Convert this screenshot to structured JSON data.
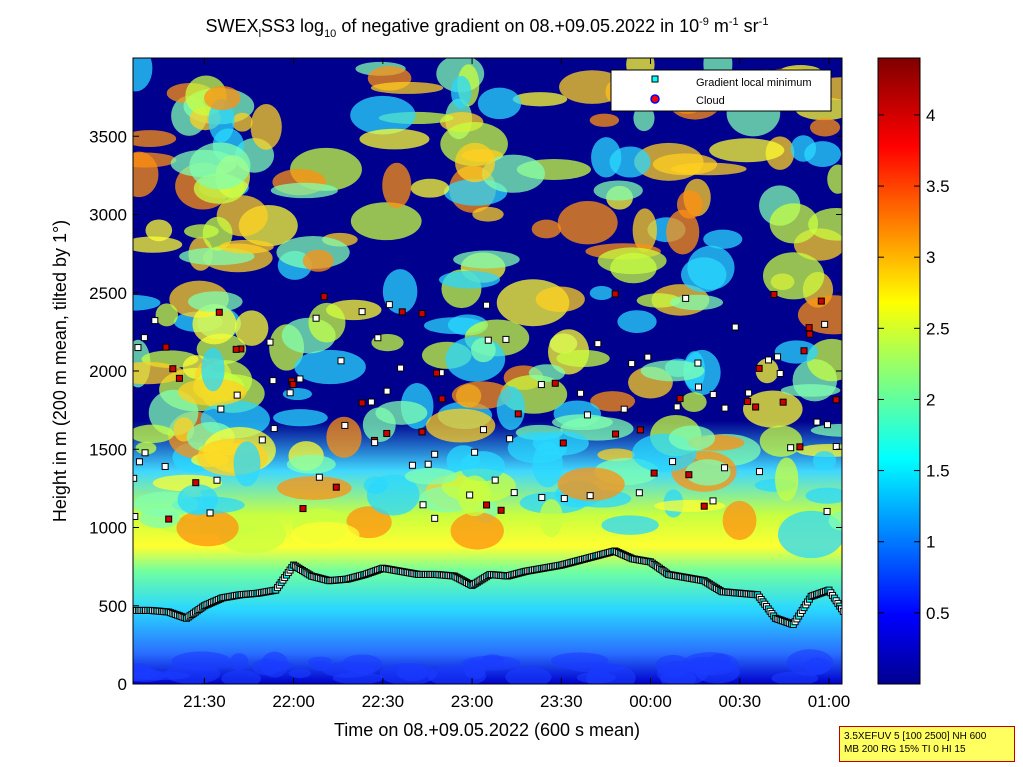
{
  "chart_data": {
    "type": "heatmap",
    "title_parts": {
      "a": "SWEX",
      "b": "l",
      "c": "SS3 log",
      "d": "10",
      "e": " of negative gradient on 08.+09.05.2022 in 10",
      "f": "-9",
      "g": " m",
      "h": "-1",
      "i": " sr",
      "j": "-1"
    },
    "xlabel": "Time on 08.+09.05.2022 (600 s mean)",
    "ylabel": "Height in m (200 m mean, tilted by 1°)",
    "x_ticks": [
      "21:30",
      "22:00",
      "22:30",
      "23:00",
      "23:30",
      "00:00",
      "00:30",
      "01:00"
    ],
    "x_tick_hours": [
      21.5,
      22.0,
      22.5,
      23.0,
      23.5,
      24.0,
      24.5,
      25.0
    ],
    "xlim_hours": [
      21.1,
      25.0
    ],
    "y_ticks": [
      "0",
      "500",
      "1000",
      "1500",
      "2000",
      "2500",
      "3000",
      "3500"
    ],
    "y_tick_values": [
      0,
      500,
      1000,
      1500,
      2000,
      2500,
      3000,
      3500
    ],
    "ylim": [
      0,
      4000
    ],
    "colorbar": {
      "ticks": [
        "0.5",
        "1",
        "1.5",
        "2",
        "2.5",
        "3",
        "3.5",
        "4"
      ],
      "tick_values": [
        0.5,
        1,
        1.5,
        2,
        2.5,
        3,
        3.5,
        4
      ],
      "range": [
        0,
        4.4
      ],
      "colormap": "jet"
    },
    "legend": {
      "placement": "top-right",
      "entries": [
        {
          "label": "Gradient local minimum",
          "color": "#00ffff"
        },
        {
          "label": "Cloud",
          "color": "#ff0000"
        }
      ]
    },
    "gradient_minimum_line": {
      "hours": [
        21.1,
        21.2,
        21.3,
        21.4,
        21.5,
        21.6,
        21.7,
        21.8,
        21.9,
        22.0,
        22.1,
        22.2,
        22.3,
        22.4,
        22.5,
        22.6,
        22.7,
        22.8,
        22.9,
        23.0,
        23.1,
        23.2,
        23.3,
        23.4,
        23.5,
        23.6,
        23.7,
        23.8,
        23.9,
        24.0,
        24.1,
        24.2,
        24.3,
        24.4,
        24.5,
        24.6,
        24.7,
        24.8,
        24.9,
        25.0,
        25.1
      ],
      "heights": [
        470,
        470,
        460,
        420,
        500,
        550,
        570,
        580,
        600,
        760,
        690,
        660,
        670,
        700,
        740,
        720,
        700,
        700,
        690,
        630,
        700,
        690,
        720,
        740,
        760,
        790,
        820,
        850,
        800,
        780,
        700,
        680,
        660,
        590,
        580,
        570,
        420,
        380,
        560,
        600,
        430
      ]
    }
  },
  "info_box": {
    "line1": "3.5XEFUV 5 [100 2500] NH 600",
    "line2": "MB 200 RG 15% TI 0 HI 15"
  },
  "colors": {
    "background_low": "#00008f",
    "bright_band": "#ffff00",
    "marker_cyan": "#00ffff",
    "marker_red": "#cc0000"
  }
}
